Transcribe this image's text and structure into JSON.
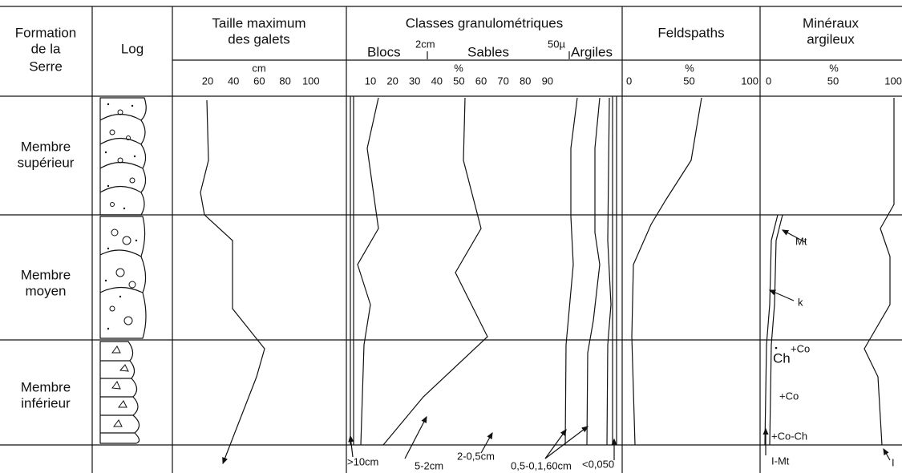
{
  "header": {
    "formation": [
      "Formation",
      "de la",
      "Serre"
    ],
    "log": "Log",
    "taille": {
      "title": [
        "Taille maximum",
        "des galets"
      ],
      "unit": "cm",
      "ticks": [
        "20",
        "40",
        "60",
        "80",
        "100"
      ]
    },
    "classes": {
      "title": "Classes granulométriques",
      "sub": [
        "Blocs",
        "2cm",
        "Sables",
        "50µ",
        "Argiles"
      ],
      "unit": "%",
      "ticks": [
        "10",
        "20",
        "30",
        "40",
        "50",
        "60",
        "70",
        "80",
        "90"
      ]
    },
    "feldspaths": {
      "title": "Feldspaths",
      "unit": "%",
      "ticks": [
        "0",
        "50",
        "100"
      ]
    },
    "mineraux": {
      "title": [
        "Minéraux",
        "argileux"
      ],
      "unit": "%",
      "ticks": [
        "0",
        "50",
        "100"
      ]
    }
  },
  "rows": [
    [
      "Membre",
      "supérieur"
    ],
    [
      "Membre",
      "moyen"
    ],
    [
      "Membre",
      "inférieur"
    ]
  ],
  "classes_labels": [
    ">10cm",
    "5-2cm",
    "2-0,5cm",
    "0,5-0,1,60cm",
    "<0,050"
  ],
  "mineraux_labels": {
    "mt": "Mt",
    "k": "k",
    "ch": "Ch",
    "co1": "+Co",
    "co2": "+Co",
    "coch": "+Co-Ch",
    "imt": "I-Mt",
    "i": "I"
  }
}
